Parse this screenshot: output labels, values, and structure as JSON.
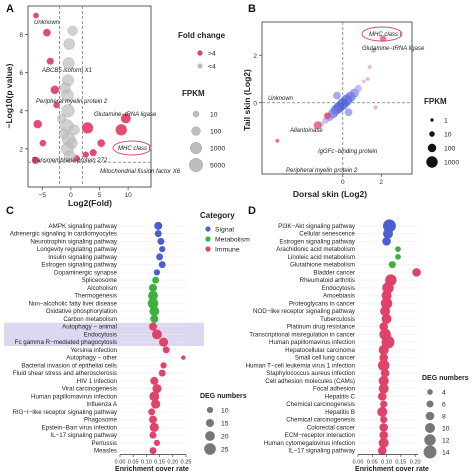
{
  "panels": {
    "a": "A",
    "b": "B",
    "c": "C",
    "d": "D"
  },
  "colors": {
    "red": "#e0426a",
    "blue": "#4b5fd1",
    "green": "#3cb33c",
    "gray": "#bdbdbd",
    "highlight": "#ddd8f0"
  },
  "chart_data": [
    {
      "type": "scatter",
      "panel": "A",
      "xlabel": "Log2(Fold)",
      "ylabel": "−Log10(p value)",
      "xlim": [
        -7.5,
        14
      ],
      "ylim": [
        0,
        9.5
      ],
      "xticks": [
        "−5",
        "0",
        "5",
        "10"
      ],
      "yticks": [
        "2",
        "4",
        "6",
        "8"
      ],
      "legend_fold_title": "Fold change",
      "legend_fold_items": [
        ">4",
        "<4"
      ],
      "legend_size_title": "FPKM",
      "legend_size_items": [
        "10",
        "100",
        "1000",
        "5000"
      ],
      "annotations": [
        "Unknown",
        "ABCB5 isoform X1",
        "Peripheral myelin protein 2",
        "Glutamine−tRNA ligase",
        "MHC class I",
        "Transmembrane protein 272",
        "Mitochondrial fission factor X6"
      ],
      "points": [
        {
          "x": -6.1,
          "y": 9.0,
          "fpkm": 10,
          "group": ">4"
        },
        {
          "x": -4.2,
          "y": 8.1,
          "fpkm": 50,
          "group": ">4"
        },
        {
          "x": -3.6,
          "y": 6.6,
          "fpkm": 30,
          "group": ">4"
        },
        {
          "x": -2.8,
          "y": 5.1,
          "fpkm": 100,
          "group": ">4"
        },
        {
          "x": -2.5,
          "y": 4.3,
          "fpkm": 20,
          "group": ">4"
        },
        {
          "x": -5.8,
          "y": 3.3,
          "fpkm": 100,
          "group": ">4"
        },
        {
          "x": -4.9,
          "y": 2.3,
          "fpkm": 20,
          "group": ">4"
        },
        {
          "x": -6.2,
          "y": 1.4,
          "fpkm": 40,
          "group": ">4"
        },
        {
          "x": 2.9,
          "y": 3.1,
          "fpkm": 1000,
          "group": ">4"
        },
        {
          "x": 8.8,
          "y": 3.0,
          "fpkm": 1000,
          "group": ">4"
        },
        {
          "x": 9.6,
          "y": 3.6,
          "fpkm": 300,
          "group": ">4"
        },
        {
          "x": 5.3,
          "y": 2.3,
          "fpkm": 50,
          "group": ">4"
        },
        {
          "x": 3.9,
          "y": 1.8,
          "fpkm": 30,
          "group": ">4"
        },
        {
          "x": 2.6,
          "y": 1.7,
          "fpkm": 15,
          "group": ">4"
        },
        {
          "x": 1.0,
          "y": 1.5,
          "fpkm": 20,
          "group": ">4"
        },
        {
          "x": 0.3,
          "y": 8.2,
          "fpkm": 200,
          "group": "<4"
        },
        {
          "x": -0.3,
          "y": 7.5,
          "fpkm": 600,
          "group": "<4"
        },
        {
          "x": -0.4,
          "y": 6.5,
          "fpkm": 900,
          "group": "<4"
        },
        {
          "x": -0.5,
          "y": 5.6,
          "fpkm": 800,
          "group": "<4"
        },
        {
          "x": -0.6,
          "y": 4.8,
          "fpkm": 1500,
          "group": "<4"
        },
        {
          "x": -0.5,
          "y": 4.0,
          "fpkm": 2500,
          "group": "<4"
        },
        {
          "x": -0.7,
          "y": 3.2,
          "fpkm": 3000,
          "group": "<4"
        },
        {
          "x": -0.4,
          "y": 2.5,
          "fpkm": 4000,
          "group": "<4"
        },
        {
          "x": -0.6,
          "y": 2.0,
          "fpkm": 2000,
          "group": "<4"
        },
        {
          "x": -0.2,
          "y": 1.6,
          "fpkm": 1000,
          "group": "<4"
        },
        {
          "x": 0.2,
          "y": 2.3,
          "fpkm": 500,
          "group": "<4"
        },
        {
          "x": 0.6,
          "y": 3.0,
          "fpkm": 300,
          "group": "<4"
        },
        {
          "x": -1.2,
          "y": 2.8,
          "fpkm": 200,
          "group": "<4"
        },
        {
          "x": -1.6,
          "y": 3.6,
          "fpkm": 100,
          "group": "<4"
        },
        {
          "x": -1.0,
          "y": 5.2,
          "fpkm": 400,
          "group": "<4"
        }
      ]
    },
    {
      "type": "scatter",
      "panel": "B",
      "xlabel": "Dorsal skin (Log2)",
      "ylabel": "Tail skin (Log2)",
      "xlim": [
        -4.2,
        3.6
      ],
      "ylim": [
        -3.0,
        3.4
      ],
      "xticks": [
        "0",
        "2"
      ],
      "yticks": [
        "0",
        "2"
      ],
      "legend_size_title": "FPKM",
      "legend_size_items": [
        "1",
        "10",
        "100",
        "1000"
      ],
      "annotations": [
        "MHC class I",
        "Glutamine−tRNA ligase",
        "Unknown",
        "Allantoinase",
        "IgGFc−binding protein",
        "Peripheral myelin protein 2"
      ],
      "points": [
        {
          "x": 2.1,
          "y": 2.7,
          "fpkm": 20,
          "c": "#d04a9a"
        },
        {
          "x": 1.6,
          "y": 2.2,
          "fpkm": 5,
          "c": "#c28ad0"
        },
        {
          "x": 1.4,
          "y": 1.5,
          "fpkm": 3,
          "c": "#d8a8e0"
        },
        {
          "x": 1.1,
          "y": 0.9,
          "fpkm": 2,
          "c": "#c9b4ea"
        },
        {
          "x": 0.8,
          "y": 0.6,
          "fpkm": 40,
          "c": "#b3a9ec"
        },
        {
          "x": 0.6,
          "y": 0.4,
          "fpkm": 200,
          "c": "#8c8ee6"
        },
        {
          "x": 0.4,
          "y": 0.25,
          "fpkm": 500,
          "c": "#6b78e0"
        },
        {
          "x": 0.2,
          "y": 0.1,
          "fpkm": 900,
          "c": "#5a6bdc"
        },
        {
          "x": 0.0,
          "y": -0.05,
          "fpkm": 1000,
          "c": "#4b5fd1"
        },
        {
          "x": -0.2,
          "y": -0.2,
          "fpkm": 700,
          "c": "#4b5fd1"
        },
        {
          "x": -0.35,
          "y": -0.3,
          "fpkm": 400,
          "c": "#5a6bdc"
        },
        {
          "x": -0.5,
          "y": -0.45,
          "fpkm": 300,
          "c": "#6b78e0"
        },
        {
          "x": -0.7,
          "y": -0.6,
          "fpkm": 100,
          "c": "#8c8ee6"
        },
        {
          "x": -0.9,
          "y": -0.75,
          "fpkm": 20,
          "c": "#b3a9ec"
        },
        {
          "x": -1.1,
          "y": -0.9,
          "fpkm": 5,
          "c": "#c9b4ea"
        },
        {
          "x": 0.3,
          "y": -0.4,
          "fpkm": 60,
          "c": "#8c8ee6"
        },
        {
          "x": -0.3,
          "y": 0.3,
          "fpkm": 60,
          "c": "#8c8ee6"
        },
        {
          "x": -1.3,
          "y": -0.95,
          "fpkm": 80,
          "c": "#e0426a"
        },
        {
          "x": -0.8,
          "y": -0.55,
          "fpkm": 30,
          "c": "#e0426a"
        },
        {
          "x": -3.4,
          "y": -1.6,
          "fpkm": 2,
          "c": "#e0426a"
        },
        {
          "x": 1.7,
          "y": -0.2,
          "fpkm": 3,
          "c": "#e89ab0"
        },
        {
          "x": 1.3,
          "y": 1.0,
          "fpkm": 2,
          "c": "#e89ab0"
        }
      ]
    },
    {
      "type": "scatter",
      "panel": "C",
      "xlabel": "Enrichment cover rate",
      "xlim": [
        0.0,
        0.25
      ],
      "xticks": [
        "0.00",
        "0.05",
        "0.10",
        "0.15",
        "0.20",
        "0.25"
      ],
      "legend_cat_title": "Category",
      "legend_cat_items": [
        "Signal",
        "Metabolism",
        "Immune"
      ],
      "legend_size_title": "DEG numbers",
      "legend_size_items": [
        "10",
        "15",
        "20",
        "25"
      ],
      "highlight": [
        "Autophagy − animal",
        "Endocytosis",
        "Fc gamma R−mediated phagocytosis"
      ],
      "categories": [
        "AMPK signaling pathway",
        "Adrenergic signaling in cardiomyocytes",
        "Neurotrophin signaling pathway",
        "Longevity regulating pathway",
        "Insulin signaling pathway",
        "Estrogen signaling pathway",
        "Dopaminergic synapse",
        "Spliceosome",
        "Alcoholism",
        "Thermogenesis",
        "Non−alcoholic fatty liver disease",
        "Oxidative phosphorylation",
        "Carbon metabolism",
        "Autophagy − animal",
        "Endocytosis",
        "Fc gamma R−mediated phagocytosis",
        "Yersinia infection",
        "Autophagy − other",
        "Bacterial invasion of epithelial cells",
        "Fluid shear stress and atherosclerosis",
        "HIV 1 infection",
        "Viral carcinogenesis",
        "Human papillomavirus infection",
        "Influenza A",
        "RIG−I−like receptor signaling pathway",
        "Phagosome",
        "Epstein−Barr virus infection",
        "IL−17 signaling pathway",
        "Pertussis",
        "Measles"
      ],
      "values": [
        0.145,
        0.145,
        0.155,
        0.16,
        0.15,
        0.16,
        0.14,
        0.135,
        0.125,
        0.125,
        0.125,
        0.13,
        0.13,
        0.125,
        0.14,
        0.165,
        0.175,
        0.24,
        0.165,
        0.16,
        0.13,
        0.14,
        0.13,
        0.135,
        0.12,
        0.125,
        0.13,
        0.125,
        0.14,
        0.125
      ],
      "sizes": [
        15,
        12,
        12,
        10,
        12,
        12,
        10,
        12,
        15,
        20,
        22,
        20,
        15,
        15,
        20,
        18,
        12,
        5,
        10,
        12,
        15,
        18,
        20,
        18,
        12,
        15,
        18,
        12,
        10,
        12
      ],
      "groups": [
        "Signal",
        "Signal",
        "Signal",
        "Signal",
        "Signal",
        "Signal",
        "Signal",
        "Metabolism",
        "Metabolism",
        "Metabolism",
        "Metabolism",
        "Metabolism",
        "Metabolism",
        "Immune",
        "Immune",
        "Immune",
        "Immune",
        "Immune",
        "Immune",
        "Immune",
        "Immune",
        "Immune",
        "Immune",
        "Immune",
        "Immune",
        "Immune",
        "Immune",
        "Immune",
        "Immune",
        "Immune"
      ]
    },
    {
      "type": "scatter",
      "panel": "D",
      "xlabel": "Enrichment cover rate",
      "xlim": [
        0.0,
        0.21
      ],
      "xticks": [
        "0.00",
        "0.05",
        "0.10",
        "0.15",
        "0.20"
      ],
      "legend_size_title": "DEG numbers",
      "legend_size_items": [
        "4",
        "6",
        "8",
        "10",
        "12",
        "14"
      ],
      "categories": [
        "PI3K−Akt signaling pathway",
        "Cellular senescence",
        "Estrogen signaling pathway",
        "Arachidonic acid metabolism",
        "Linoleic acid metabolism",
        "Glutathione metabolism",
        "Bladder cancer",
        "Rheumatoid arthritis",
        "Endocytosis",
        "Amoebiasis",
        "Proteoglycans in cancer",
        "NOD−like receptor signaling pathway",
        "Tuberculosis",
        "Platinum drug resistance",
        "Transcriptional misregulation in cancer",
        "Human papillomavirus infection",
        "Hepatocellular carcinoma",
        "Small cell lung cancer",
        "Human T−cell leukemia virus 1 infection",
        "Staphylococcus aureus infection",
        "Cell adhesion molecules (CAMs)",
        "Focal adhesion",
        "Hepatitis C",
        "Chemical carcinogenesis",
        "Hepatitis B",
        "Chemical carcinogenesis",
        "Colorectal cancer",
        "ECM−receptor interaction",
        "Human cytomegalovirus infection",
        "IL−17 signaling pathway"
      ],
      "values": [
        0.11,
        0.105,
        0.1,
        0.14,
        0.14,
        0.12,
        0.205,
        0.115,
        0.105,
        0.1,
        0.1,
        0.095,
        0.1,
        0.09,
        0.095,
        0.105,
        0.09,
        0.09,
        0.09,
        0.095,
        0.09,
        0.09,
        0.085,
        0.09,
        0.085,
        0.09,
        0.09,
        0.09,
        0.09,
        0.085
      ],
      "sizes": [
        14,
        10,
        8,
        4,
        4,
        6,
        8,
        12,
        12,
        10,
        12,
        10,
        10,
        8,
        12,
        14,
        10,
        8,
        12,
        8,
        10,
        10,
        8,
        6,
        10,
        6,
        8,
        8,
        10,
        8
      ],
      "groups": [
        "Signal",
        "Signal",
        "Signal",
        "Metabolism",
        "Metabolism",
        "Metabolism",
        "Immune",
        "Immune",
        "Immune",
        "Immune",
        "Immune",
        "Immune",
        "Immune",
        "Immune",
        "Immune",
        "Immune",
        "Immune",
        "Immune",
        "Immune",
        "Immune",
        "Immune",
        "Immune",
        "Immune",
        "Immune",
        "Immune",
        "Immune",
        "Immune",
        "Immune",
        "Immune",
        "Immune"
      ]
    }
  ]
}
